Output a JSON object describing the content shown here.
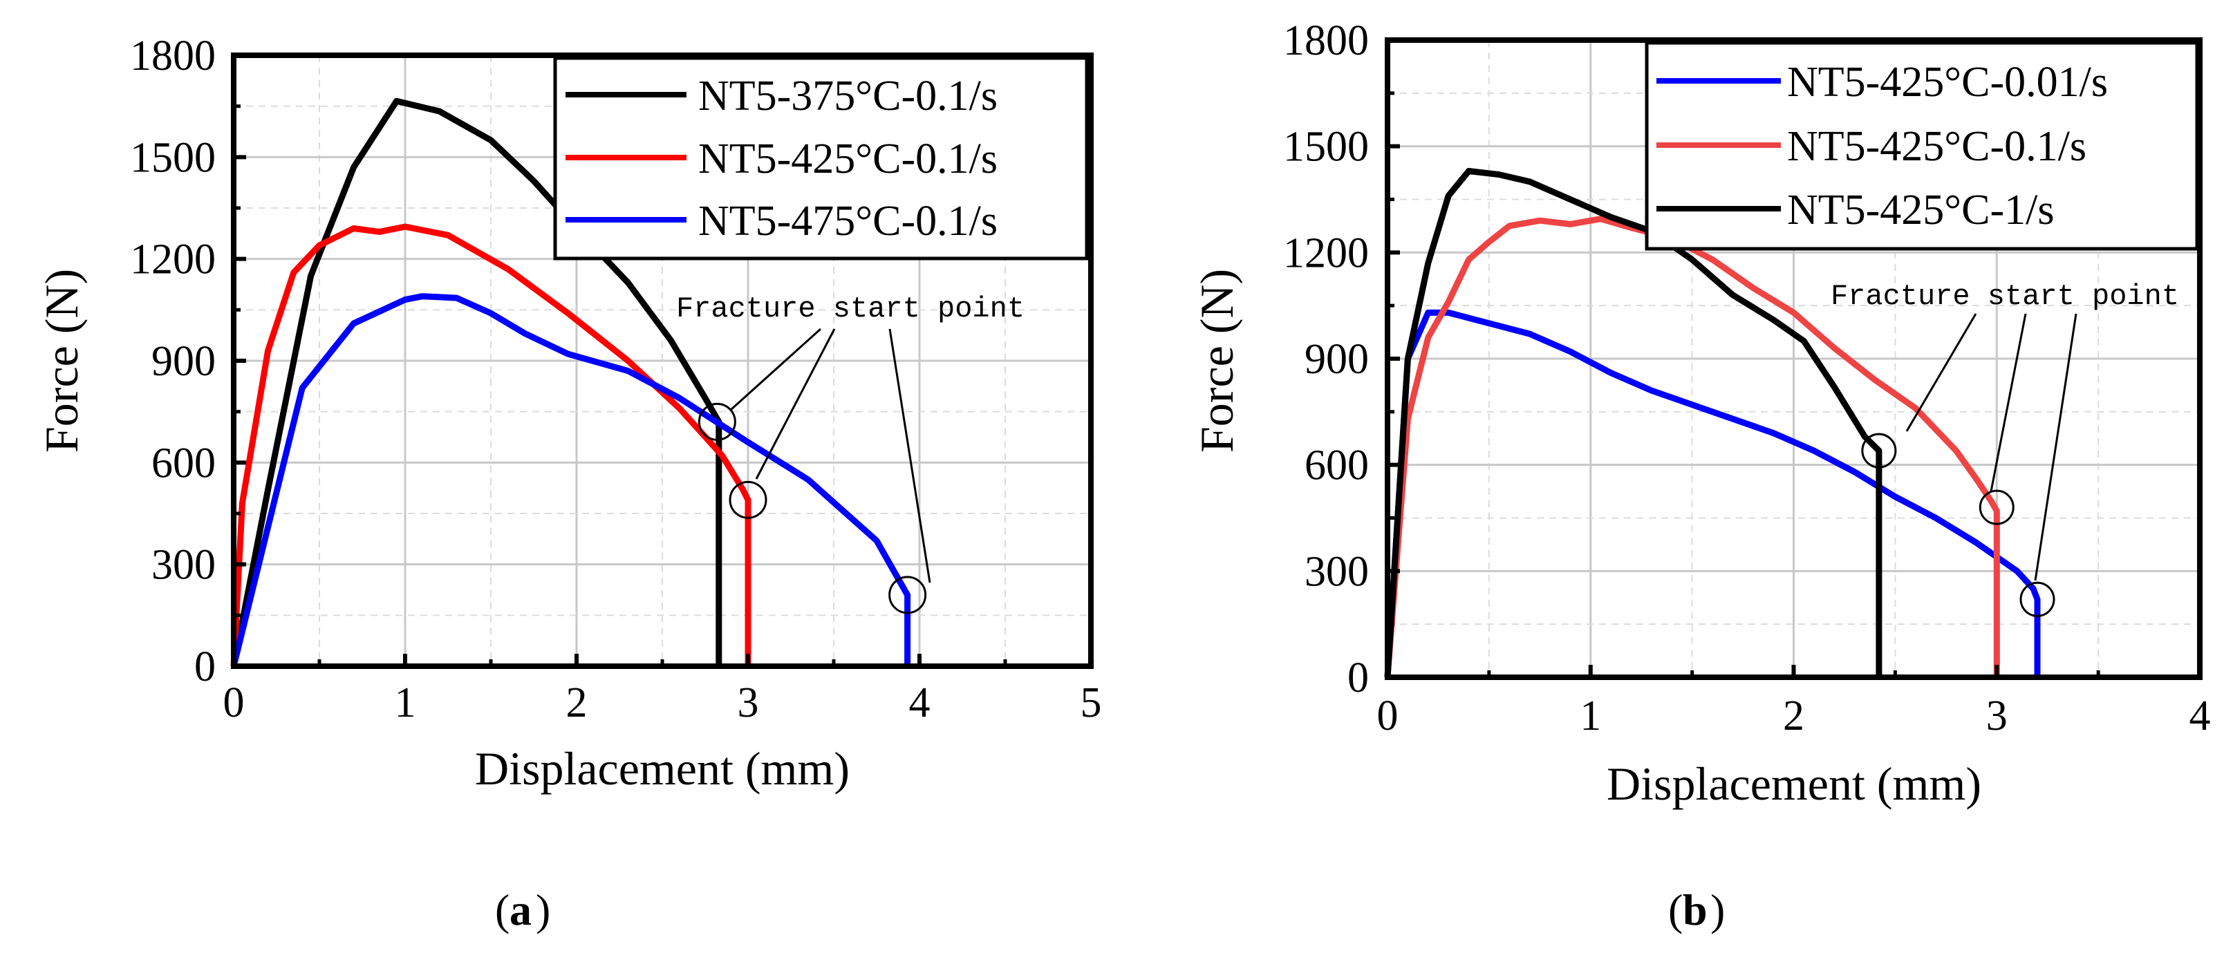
{
  "chart_data": [
    {
      "type": "line",
      "panel_label": "a",
      "xlabel": "Displacement  (mm)",
      "ylabel": "Force (N)",
      "xlim": [
        0,
        5
      ],
      "ylim": [
        0,
        1800
      ],
      "xticks": [
        0,
        1,
        2,
        3,
        4,
        5
      ],
      "yticks": [
        0,
        300,
        600,
        900,
        1200,
        1500,
        1800
      ],
      "grid": true,
      "legend_position": "top-right",
      "annotation": "Fracture start point",
      "series": [
        {
          "name": "NT5-375°C-0.1/s",
          "color": "#000000",
          "x": [
            0,
            0.2,
            0.45,
            0.7,
            0.95,
            1.2,
            1.5,
            1.75,
            2.0,
            2.3,
            2.55,
            2.75,
            2.83,
            2.83
          ],
          "y": [
            0,
            520,
            1150,
            1470,
            1665,
            1635,
            1550,
            1430,
            1290,
            1130,
            960,
            790,
            720,
            0
          ]
        },
        {
          "name": "NT5-425°C-0.1/s",
          "color": "#ff0000",
          "x": [
            0,
            0.05,
            0.2,
            0.35,
            0.5,
            0.7,
            0.85,
            1.0,
            1.25,
            1.6,
            1.95,
            2.3,
            2.6,
            2.85,
            2.97,
            3.0,
            3.0
          ],
          "y": [
            0,
            480,
            930,
            1160,
            1240,
            1290,
            1280,
            1295,
            1270,
            1170,
            1040,
            900,
            760,
            620,
            520,
            490,
            0
          ]
        },
        {
          "name": "NT5-475°C-0.1/s",
          "color": "#0000ff",
          "x": [
            0,
            0.4,
            0.7,
            1.0,
            1.1,
            1.3,
            1.5,
            1.7,
            1.95,
            2.3,
            2.6,
            3.0,
            3.35,
            3.55,
            3.75,
            3.93,
            3.93
          ],
          "y": [
            0,
            820,
            1010,
            1080,
            1090,
            1085,
            1040,
            980,
            920,
            870,
            790,
            660,
            550,
            460,
            370,
            210,
            0
          ]
        }
      ],
      "fracture_points": [
        [
          2.82,
          720
        ],
        [
          3.0,
          490
        ],
        [
          3.93,
          210
        ]
      ]
    },
    {
      "type": "line",
      "panel_label": "b",
      "xlabel": "Displacement (mm)",
      "ylabel": "Force (N)",
      "xlim": [
        0,
        4
      ],
      "ylim": [
        0,
        1800
      ],
      "xticks": [
        0,
        1,
        2,
        3,
        4
      ],
      "yticks": [
        0,
        300,
        600,
        900,
        1200,
        1500,
        1800
      ],
      "grid": true,
      "legend_position": "top-right",
      "annotation": "Fracture start point",
      "series": [
        {
          "name": "NT5-425°C-0.01/s",
          "color": "#0000ff",
          "x": [
            0,
            0.1,
            0.2,
            0.3,
            0.5,
            0.7,
            0.9,
            1.1,
            1.3,
            1.5,
            1.7,
            1.9,
            2.1,
            2.3,
            2.5,
            2.7,
            2.9,
            3.1,
            3.18,
            3.2,
            3.2
          ],
          "y": [
            0,
            900,
            1030,
            1030,
            1000,
            970,
            920,
            860,
            810,
            770,
            730,
            690,
            640,
            580,
            510,
            450,
            380,
            300,
            250,
            220,
            0
          ]
        },
        {
          "name": "NT5-425°C-0.1/s",
          "color": "#ee4444",
          "x": [
            0,
            0.1,
            0.2,
            0.3,
            0.4,
            0.5,
            0.6,
            0.75,
            0.9,
            1.05,
            1.2,
            1.4,
            1.6,
            1.8,
            2.0,
            2.2,
            2.4,
            2.6,
            2.8,
            2.9,
            2.97,
            3.0,
            3.0
          ],
          "y": [
            0,
            730,
            960,
            1060,
            1180,
            1230,
            1275,
            1290,
            1280,
            1295,
            1270,
            1240,
            1180,
            1100,
            1030,
            930,
            840,
            760,
            640,
            560,
            500,
            470,
            0
          ]
        },
        {
          "name": "NT5-425°C-1/s",
          "color": "#000000",
          "x": [
            0,
            0.1,
            0.2,
            0.3,
            0.4,
            0.55,
            0.7,
            0.9,
            1.1,
            1.3,
            1.5,
            1.7,
            1.9,
            2.05,
            2.2,
            2.35,
            2.42,
            2.42
          ],
          "y": [
            0,
            900,
            1170,
            1360,
            1430,
            1420,
            1400,
            1350,
            1300,
            1260,
            1180,
            1080,
            1010,
            950,
            820,
            680,
            640,
            0
          ]
        }
      ],
      "fracture_points": [
        [
          2.42,
          640
        ],
        [
          3.0,
          480
        ],
        [
          3.2,
          220
        ]
      ]
    }
  ]
}
